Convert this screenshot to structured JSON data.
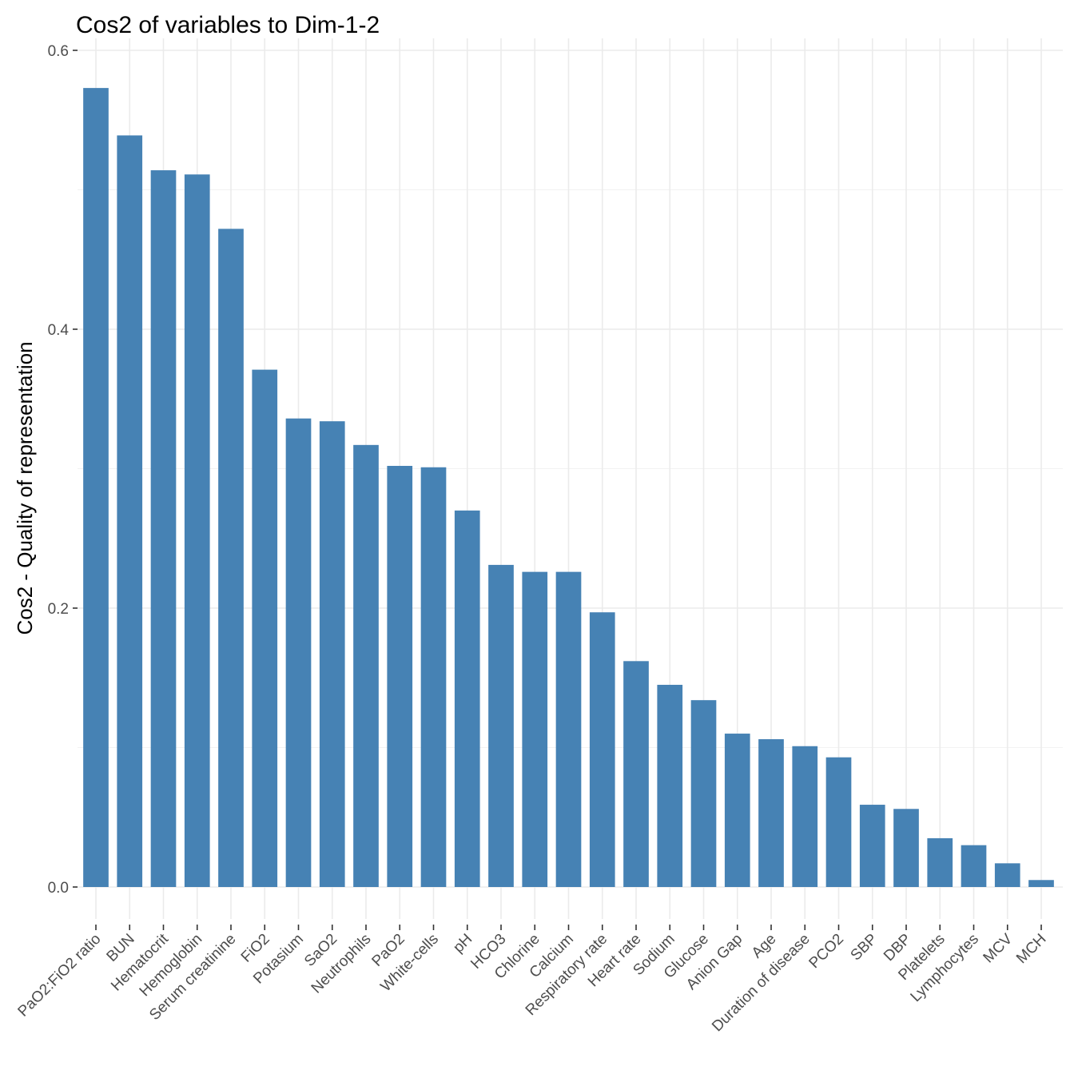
{
  "chart_data": {
    "type": "bar",
    "title": "Cos2 of variables to Dim-1-2",
    "xlabel": "",
    "ylabel": "Cos2 - Quality of representation",
    "ylim": [
      0,
      0.6
    ],
    "yticks": [
      "0.0",
      "0.2",
      "0.4",
      "0.6"
    ],
    "ytick_values": [
      0,
      0.2,
      0.4,
      0.6
    ],
    "grid": true,
    "bar_color": "#4682B4",
    "categories": [
      "PaO2:FiO2 ratio",
      "BUN",
      "Hematocrit",
      "Hemoglobin",
      "Serum creatinine",
      "FiO2",
      "Potasium",
      "SaO2",
      "Neutrophils",
      "PaO2",
      "White-cells",
      "pH",
      "HCO3",
      "Chlorine",
      "Calcium",
      "Respiratory rate",
      "Heart rate",
      "Sodium",
      "Glucose",
      "Anion Gap",
      "Age",
      "Duration of disease",
      "PCO2",
      "SBP",
      "DBP",
      "Platelets",
      "Lymphocytes",
      "MCV",
      "MCH"
    ],
    "values": [
      0.573,
      0.539,
      0.514,
      0.511,
      0.472,
      0.371,
      0.336,
      0.334,
      0.317,
      0.302,
      0.301,
      0.27,
      0.231,
      0.226,
      0.226,
      0.197,
      0.162,
      0.145,
      0.134,
      0.11,
      0.106,
      0.101,
      0.093,
      0.059,
      0.056,
      0.035,
      0.03,
      0.017,
      0.005
    ]
  }
}
